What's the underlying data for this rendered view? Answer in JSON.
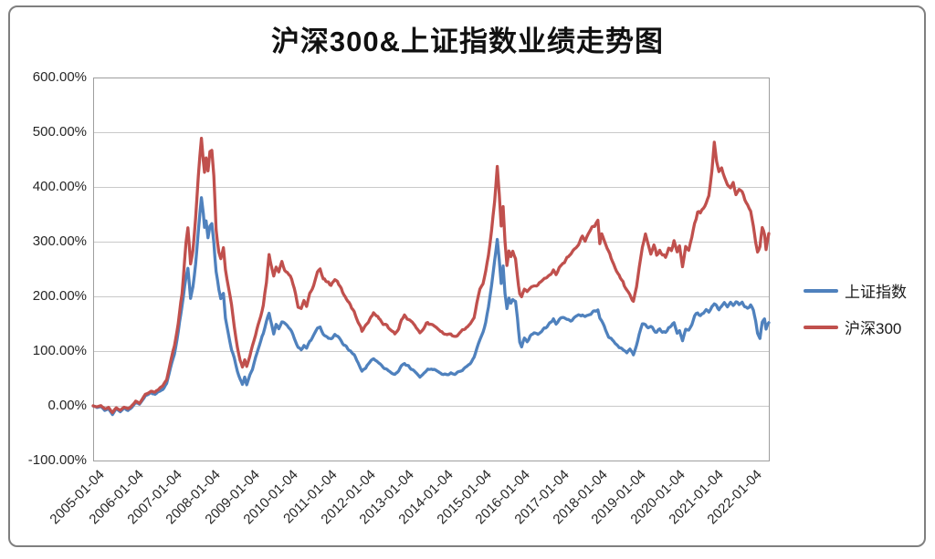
{
  "chart_data": {
    "type": "line",
    "title": "沪深300&上证指数业绩走势图",
    "xlabel": "",
    "ylabel": "",
    "ylim": [
      -100,
      600
    ],
    "y_tick_step": 100,
    "y_tick_labels": [
      "600.00%",
      "500.00%",
      "400.00%",
      "300.00%",
      "200.00%",
      "100.00%",
      "0.00%",
      "-100.00%"
    ],
    "x_tick_labels": [
      "2005-01-04",
      "2006-01-04",
      "2007-01-04",
      "2008-01-04",
      "2009-01-04",
      "2010-01-04",
      "2011-01-04",
      "2012-01-04",
      "2013-01-04",
      "2014-01-04",
      "2015-01-04",
      "2016-01-04",
      "2017-01-04",
      "2018-01-04",
      "2019-01-04",
      "2020-01-04",
      "2021-01-04",
      "2022-01-04"
    ],
    "x_start_year": 2005,
    "x_end_year": 2022.47,
    "grid": true,
    "legend_position": "right",
    "axis_color": "#9e9e9e",
    "grid_color": "#c9c9c9",
    "x_years": [
      2005.0,
      2005.1,
      2005.2,
      2005.3,
      2005.4,
      2005.5,
      2005.6,
      2005.7,
      2005.8,
      2005.9,
      2006.0,
      2006.1,
      2006.2,
      2006.35,
      2006.5,
      2006.6,
      2006.7,
      2006.8,
      2006.9,
      2007.0,
      2007.1,
      2007.2,
      2007.3,
      2007.4,
      2007.45,
      2007.52,
      2007.58,
      2007.65,
      2007.72,
      2007.8,
      2007.85,
      2007.88,
      2007.92,
      2007.97,
      2008.02,
      2008.07,
      2008.12,
      2008.18,
      2008.25,
      2008.3,
      2008.37,
      2008.42,
      2008.5,
      2008.58,
      2008.65,
      2008.73,
      2008.8,
      2008.86,
      2008.92,
      2008.97,
      2009.05,
      2009.12,
      2009.2,
      2009.3,
      2009.4,
      2009.48,
      2009.55,
      2009.62,
      2009.67,
      2009.73,
      2009.8,
      2009.88,
      2009.95,
      2010.02,
      2010.1,
      2010.2,
      2010.3,
      2010.38,
      2010.45,
      2010.52,
      2010.6,
      2010.7,
      2010.8,
      2010.87,
      2010.95,
      2011.05,
      2011.15,
      2011.25,
      2011.35,
      2011.45,
      2011.55,
      2011.65,
      2011.75,
      2011.85,
      2011.95,
      2012.05,
      2012.15,
      2012.25,
      2012.33,
      2012.42,
      2012.5,
      2012.6,
      2012.7,
      2012.8,
      2012.9,
      2012.97,
      2013.05,
      2013.12,
      2013.22,
      2013.32,
      2013.45,
      2013.55,
      2013.65,
      2013.75,
      2013.85,
      2013.95,
      2014.05,
      2014.15,
      2014.25,
      2014.35,
      2014.45,
      2014.55,
      2014.65,
      2014.75,
      2014.85,
      2014.92,
      2015.0,
      2015.08,
      2015.15,
      2015.22,
      2015.3,
      2015.38,
      2015.45,
      2015.5,
      2015.55,
      2015.6,
      2015.65,
      2015.7,
      2015.75,
      2015.8,
      2015.85,
      2015.92,
      2015.97,
      2016.03,
      2016.08,
      2016.15,
      2016.22,
      2016.3,
      2016.4,
      2016.5,
      2016.6,
      2016.7,
      2016.8,
      2016.9,
      2016.97,
      2017.05,
      2017.15,
      2017.25,
      2017.35,
      2017.45,
      2017.55,
      2017.65,
      2017.72,
      2017.8,
      2017.9,
      2018.0,
      2018.05,
      2018.1,
      2018.15,
      2018.25,
      2018.33,
      2018.42,
      2018.5,
      2018.6,
      2018.7,
      2018.8,
      2018.88,
      2018.97,
      2019.05,
      2019.12,
      2019.2,
      2019.28,
      2019.35,
      2019.42,
      2019.5,
      2019.57,
      2019.65,
      2019.72,
      2019.8,
      2019.88,
      2019.95,
      2020.02,
      2020.1,
      2020.16,
      2020.24,
      2020.32,
      2020.4,
      2020.48,
      2020.55,
      2020.63,
      2020.7,
      2020.78,
      2020.85,
      2020.92,
      2021.0,
      2021.06,
      2021.12,
      2021.18,
      2021.25,
      2021.32,
      2021.4,
      2021.48,
      2021.55,
      2021.62,
      2021.7,
      2021.78,
      2021.85,
      2021.92,
      2022.0,
      2022.07,
      2022.13,
      2022.18,
      2022.24,
      2022.3,
      2022.36,
      2022.4,
      2022.44,
      2022.47
    ],
    "series": [
      {
        "name": "上证指数",
        "color": "#4F81BD",
        "values_pct": [
          0,
          -3,
          -1,
          -8,
          -5,
          -16,
          -6,
          -11,
          -4,
          -9,
          -2,
          6,
          3,
          18,
          24,
          21,
          26,
          30,
          40,
          70,
          95,
          135,
          185,
          235,
          255,
          195,
          215,
          260,
          320,
          380,
          350,
          325,
          340,
          310,
          330,
          335,
          300,
          245,
          212,
          195,
          205,
          162,
          132,
          102,
          88,
          62,
          48,
          40,
          52,
          38,
          55,
          68,
          88,
          112,
          132,
          155,
          168,
          150,
          132,
          148,
          143,
          155,
          150,
          148,
          140,
          124,
          108,
          102,
          110,
          104,
          118,
          128,
          140,
          143,
          130,
          126,
          122,
          130,
          124,
          115,
          108,
          100,
          92,
          80,
          64,
          70,
          80,
          86,
          82,
          76,
          70,
          67,
          61,
          57,
          64,
          74,
          78,
          74,
          68,
          64,
          53,
          60,
          66,
          68,
          66,
          62,
          58,
          56,
          60,
          58,
          62,
          66,
          72,
          78,
          88,
          105,
          122,
          135,
          152,
          178,
          222,
          265,
          307,
          268,
          225,
          255,
          205,
          178,
          196,
          188,
          196,
          188,
          160,
          118,
          108,
          122,
          118,
          127,
          132,
          130,
          138,
          143,
          150,
          157,
          152,
          158,
          162,
          158,
          155,
          160,
          164,
          167,
          163,
          167,
          170,
          174,
          176,
          162,
          158,
          140,
          126,
          120,
          113,
          108,
          104,
          98,
          104,
          94,
          112,
          130,
          152,
          148,
          141,
          146,
          138,
          134,
          140,
          136,
          134,
          141,
          146,
          150,
          131,
          138,
          121,
          140,
          138,
          148,
          163,
          170,
          166,
          170,
          174,
          172,
          180,
          187,
          182,
          176,
          181,
          186,
          179,
          188,
          184,
          190,
          186,
          189,
          180,
          177,
          183,
          172,
          155,
          132,
          123,
          153,
          158,
          141,
          150,
          152
        ]
      },
      {
        "name": "沪深300",
        "color": "#C0504D",
        "values_pct": [
          0,
          -2,
          0,
          -6,
          -3,
          -12,
          -4,
          -8,
          -2,
          -6,
          0,
          8,
          5,
          21,
          27,
          25,
          31,
          36,
          47,
          80,
          108,
          152,
          205,
          300,
          325,
          258,
          285,
          345,
          420,
          487,
          450,
          430,
          455,
          430,
          465,
          471,
          420,
          324,
          280,
          268,
          287,
          248,
          218,
          185,
          145,
          107,
          83,
          70,
          85,
          72,
          90,
          110,
          130,
          157,
          185,
          225,
          277,
          255,
          240,
          253,
          248,
          262,
          250,
          243,
          237,
          215,
          182,
          178,
          192,
          183,
          205,
          222,
          243,
          248,
          232,
          226,
          220,
          232,
          222,
          208,
          196,
          185,
          172,
          155,
          136,
          146,
          158,
          170,
          164,
          158,
          150,
          145,
          138,
          132,
          142,
          158,
          165,
          160,
          152,
          148,
          133,
          143,
          152,
          148,
          145,
          140,
          132,
          128,
          131,
          126,
          131,
          138,
          144,
          150,
          163,
          188,
          212,
          225,
          245,
          272,
          320,
          378,
          436,
          385,
          330,
          365,
          300,
          258,
          283,
          272,
          280,
          270,
          238,
          205,
          198,
          212,
          207,
          215,
          220,
          218,
          228,
          235,
          240,
          245,
          240,
          250,
          262,
          270,
          275,
          287,
          295,
          308,
          300,
          312,
          325,
          333,
          338,
          295,
          310,
          293,
          280,
          267,
          250,
          237,
          228,
          210,
          200,
          193,
          215,
          252,
          288,
          312,
          295,
          280,
          292,
          274,
          284,
          276,
          272,
          288,
          284,
          305,
          282,
          292,
          255,
          288,
          284,
          308,
          333,
          355,
          350,
          358,
          368,
          382,
          428,
          478,
          452,
          428,
          437,
          420,
          408,
          398,
          404,
          385,
          398,
          390,
          378,
          368,
          355,
          330,
          300,
          283,
          292,
          330,
          315,
          290,
          308,
          315
        ]
      }
    ]
  }
}
